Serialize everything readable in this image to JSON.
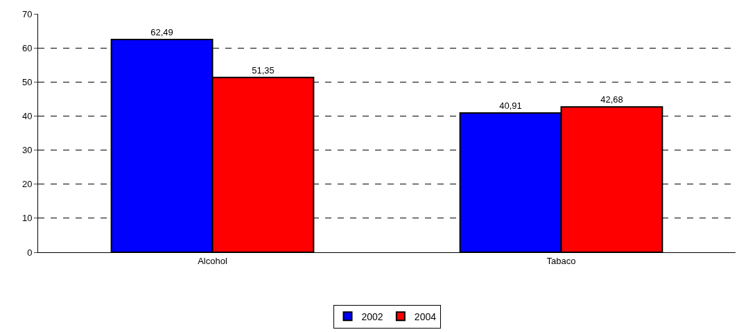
{
  "chart_data": {
    "type": "bar",
    "categories": [
      "Alcohol",
      "Tabaco"
    ],
    "series": [
      {
        "name": "2002",
        "color": "#0000ff",
        "values": [
          62.49,
          40.91
        ],
        "value_labels": [
          "62,49",
          "40,91"
        ]
      },
      {
        "name": "2004",
        "color": "#ff0000",
        "values": [
          51.35,
          42.68
        ],
        "value_labels": [
          "51,35",
          "42,68"
        ]
      }
    ],
    "ylim": [
      0,
      70
    ],
    "yticks": [
      0,
      10,
      20,
      30,
      40,
      50,
      60,
      70
    ],
    "grid": "y",
    "line_style": "dashed",
    "legend": "bottom"
  }
}
